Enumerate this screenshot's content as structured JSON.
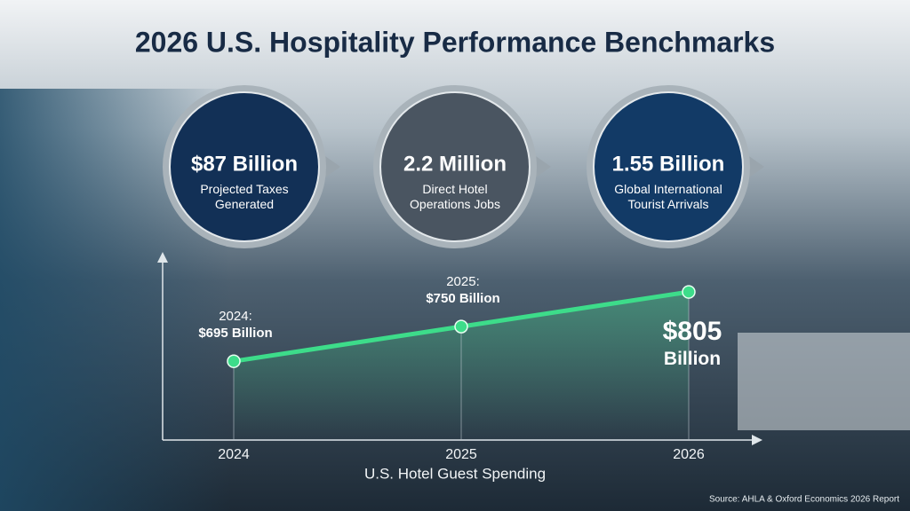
{
  "chart_data": {
    "type": "line",
    "title": "2026 U.S. Hospitality Performance Benchmarks",
    "callouts": [
      {
        "headline": "$87 Billion",
        "label": "Projected Taxes Generated",
        "color": "#123056"
      },
      {
        "headline": "2.2 Million",
        "label": "Direct Hotel Operations Jobs",
        "color": "#4a5561"
      },
      {
        "headline": "1.55 Billion",
        "label": "Global International Tourist Arrivals",
        "color": "#123a66"
      }
    ],
    "x_label": "U.S. Hotel Guest Spending",
    "categories": [
      "2024",
      "2025",
      "2026"
    ],
    "values": [
      695,
      750,
      805
    ],
    "value_labels": [
      "2024:\n$695 Billion",
      "2025:\n$750 Billion",
      "$805\nBillion"
    ],
    "color": "#3ddc8a",
    "ylim": [
      570,
      860
    ],
    "source": "Source: AHLA & Oxford Economics 2026 Report"
  }
}
